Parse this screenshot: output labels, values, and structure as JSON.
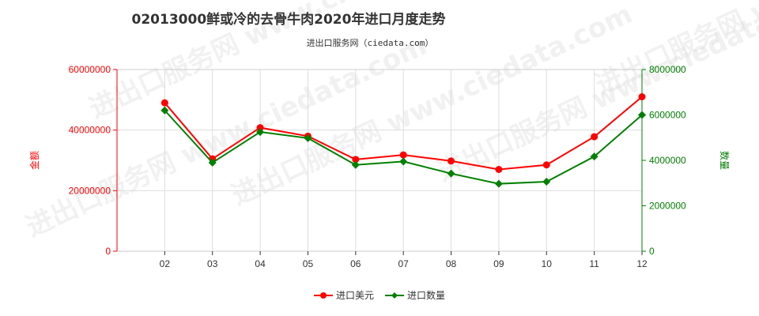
{
  "chart_data": {
    "type": "line",
    "title": "02013000鲜或冷的去骨牛肉2020年进口月度走势",
    "subtitle": "进出口服务网（ciedata.com）",
    "categories": [
      "02",
      "03",
      "04",
      "05",
      "06",
      "07",
      "08",
      "09",
      "10",
      "11",
      "12"
    ],
    "series": [
      {
        "name": "进口美元",
        "axis": "left",
        "color": "#ff0000",
        "values": [
          49000000,
          30500000,
          40800000,
          38000000,
          30300000,
          31800000,
          29800000,
          27000000,
          28500000,
          37800000,
          51000000
        ]
      },
      {
        "name": "进口数量",
        "axis": "right",
        "color": "#008000",
        "values": [
          6200000,
          3900000,
          5250000,
          4980000,
          3800000,
          3950000,
          3420000,
          2970000,
          3060000,
          4170000,
          6000000
        ]
      }
    ],
    "y_left": {
      "label": "金额",
      "color": "#ff0000",
      "lim": [
        0,
        60000000
      ],
      "ticks": [
        "0",
        "20000000",
        "40000000",
        "60000000"
      ]
    },
    "y_right": {
      "label": "数量",
      "color": "#008000",
      "lim": [
        0,
        8000000
      ],
      "ticks": [
        "0",
        "2000000",
        "4000000",
        "6000000",
        "8000000"
      ]
    },
    "grid": true,
    "legend_position": "bottom-center",
    "watermark": "进出口服务网 www.ciedata.com"
  }
}
